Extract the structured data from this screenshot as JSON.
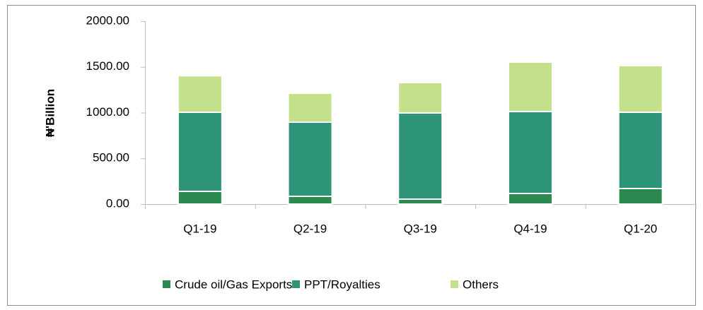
{
  "chart_data": {
    "type": "stacked_bar",
    "y_label": "₦'Billion",
    "categories": [
      "Q1-19",
      "Q2-19",
      "Q3-19",
      "Q4-19",
      "Q1-20"
    ],
    "series": [
      {
        "name": "Crude oil/Gas Exports",
        "color": "#2a8a4f",
        "values": [
          139,
          85,
          54,
          116,
          170
        ]
      },
      {
        "name": "PPT/Royalties",
        "color": "#2e9478",
        "values": [
          865,
          811,
          942,
          896,
          834
        ]
      },
      {
        "name": "Others",
        "color": "#c3e08a",
        "values": [
          400,
          316,
          332,
          540,
          510
        ]
      }
    ],
    "ylim": [
      0,
      2000
    ],
    "yticks": [
      {
        "value": 0,
        "label": "0.00"
      },
      {
        "value": 500,
        "label": "500.00"
      },
      {
        "value": 1000,
        "label": "1000.00"
      },
      {
        "value": 1500,
        "label": "1500.00"
      },
      {
        "value": 2000,
        "label": "2000.00"
      }
    ],
    "grid": false,
    "legend": "bottom"
  }
}
